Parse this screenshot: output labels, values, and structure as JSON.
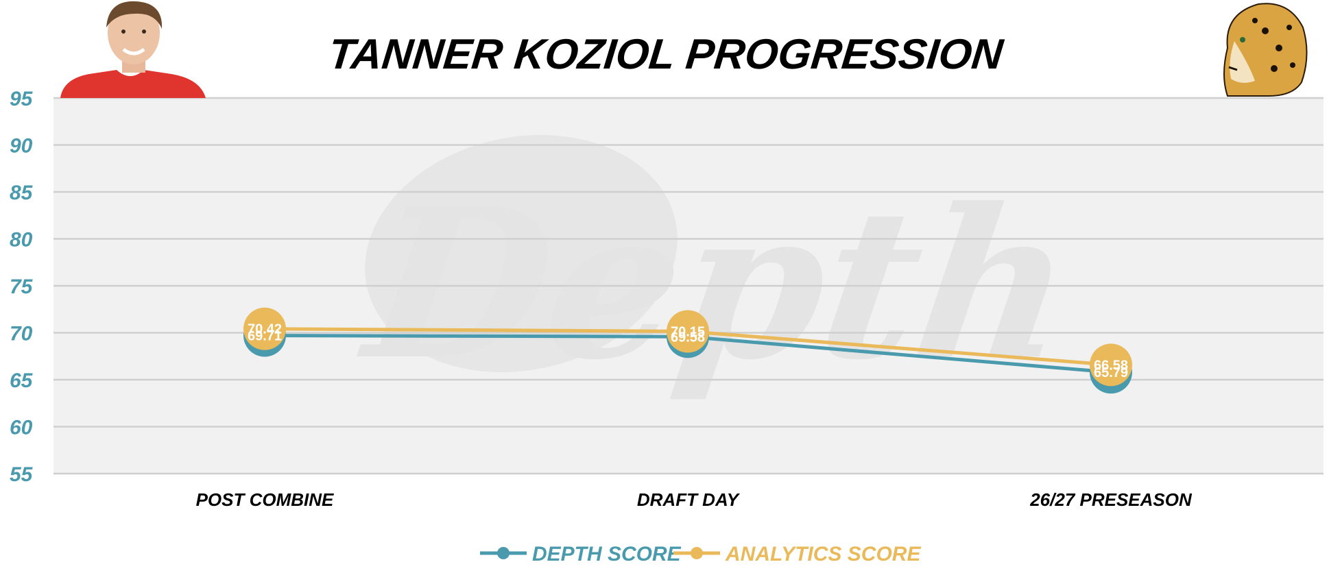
{
  "chart_data": {
    "type": "line",
    "title": "TANNER KOZIOL PROGRESSION",
    "categories": [
      "POST COMBINE",
      "DRAFT DAY",
      "26/27 PRESEASON"
    ],
    "yticks": [
      55,
      60,
      65,
      70,
      75,
      80,
      85,
      90,
      95
    ],
    "ylim": [
      55,
      95
    ],
    "grid": true,
    "legend_position": "bottom-center",
    "series": [
      {
        "name": "DEPTH SCORE",
        "values": [
          69.71,
          69.58,
          65.79
        ],
        "labels": [
          "69.71",
          "69.58",
          "65.79"
        ],
        "color": "#4a9aad"
      },
      {
        "name": "ANALYTICS SCORE",
        "values": [
          70.42,
          70.15,
          66.58
        ],
        "labels": [
          "70.42",
          "70.15",
          "66.58"
        ],
        "color": "#e9b95a"
      }
    ],
    "watermark": "Depth",
    "images": {
      "left": "player-headshot",
      "right": "jaguar-logo"
    }
  }
}
